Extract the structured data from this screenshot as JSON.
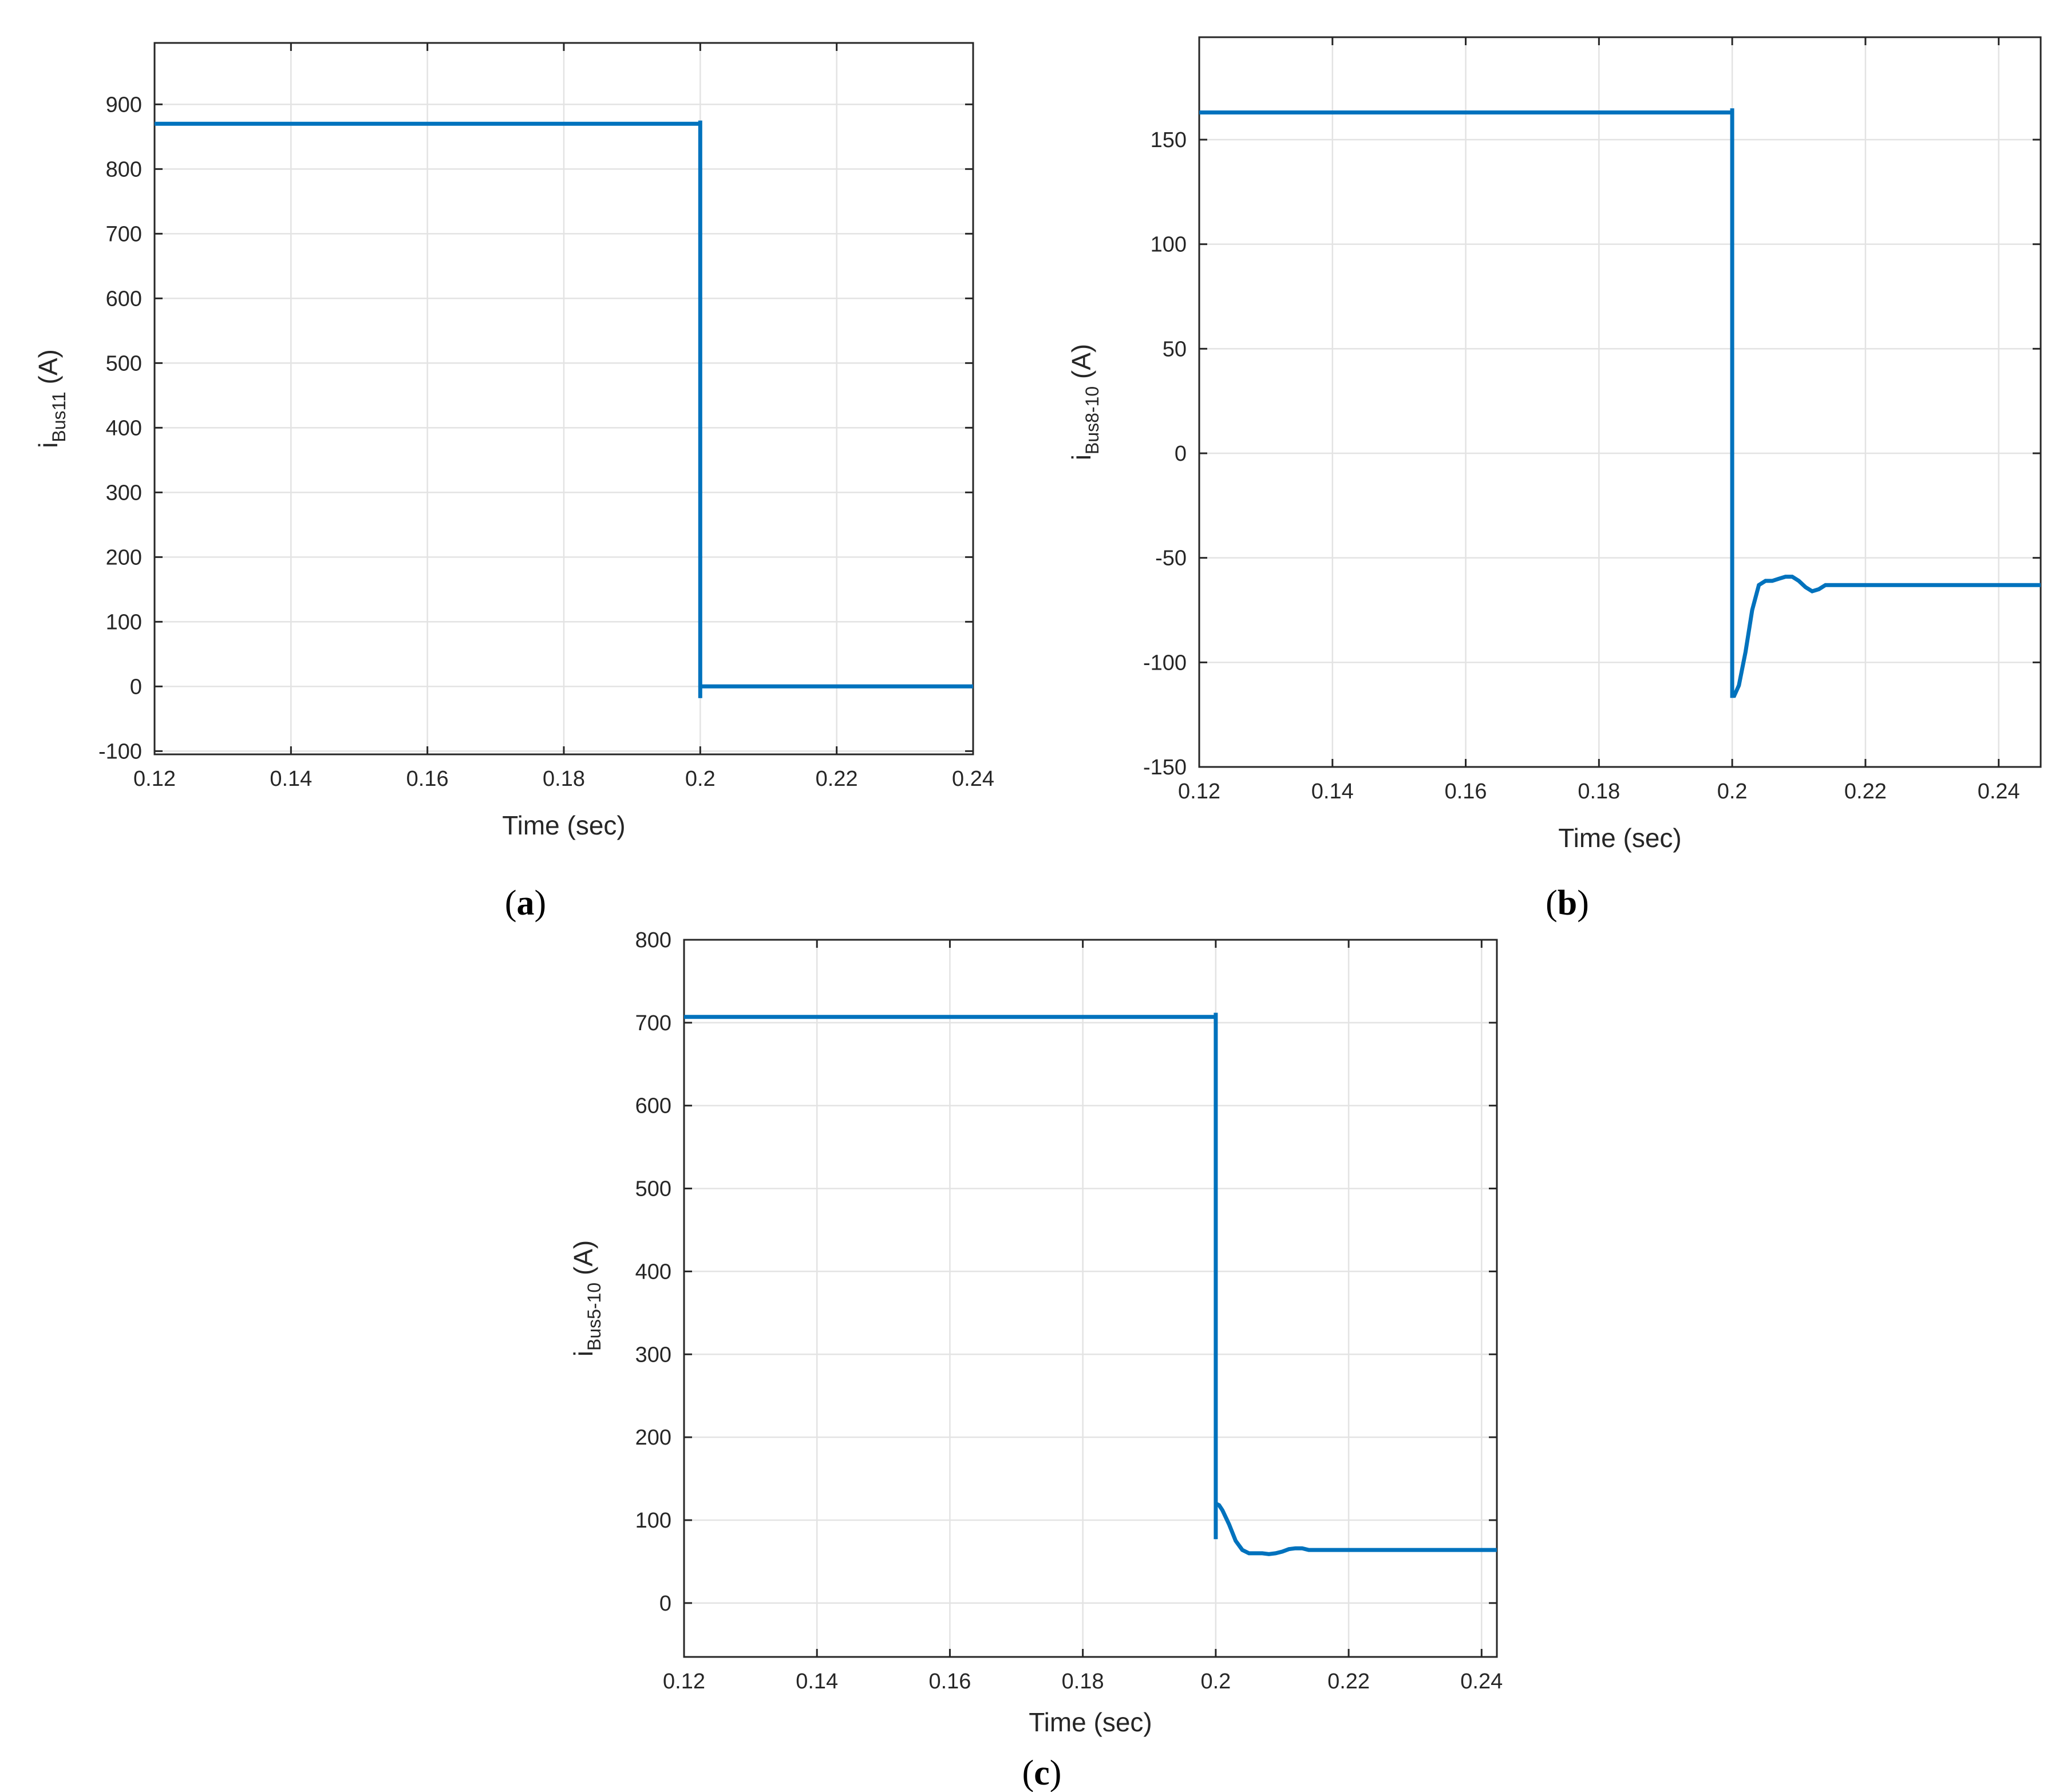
{
  "line_color": "#0072bd",
  "grid_color": "#e3e3e3",
  "chart_data": [
    {
      "id": "a",
      "type": "line",
      "subfigure_label": "a",
      "title": "",
      "xlabel": "Time (sec)",
      "ylabel_main": "i",
      "ylabel_sub": "Bus11",
      "ylabel_unit": " (A)",
      "xlim": [
        0.12,
        0.24
      ],
      "ylim": [
        -105,
        995
      ],
      "xticks": [
        0.12,
        0.14,
        0.16,
        0.18,
        0.2,
        0.22,
        0.24
      ],
      "xtick_labels": [
        "0.12",
        "0.14",
        "0.16",
        "0.18",
        "0.2",
        "0.22",
        "0.24"
      ],
      "yticks": [
        -100,
        0,
        100,
        200,
        300,
        400,
        500,
        600,
        700,
        800,
        900
      ],
      "ytick_labels": [
        "-100",
        "0",
        "100",
        "200",
        "300",
        "400",
        "500",
        "600",
        "700",
        "800",
        "900"
      ],
      "grid": true,
      "series": [
        {
          "x": [
            0.12,
            0.2,
            0.2,
            0.2,
            0.2,
            0.24
          ],
          "y": [
            870,
            870,
            875,
            -18,
            0,
            0
          ]
        }
      ]
    },
    {
      "id": "b",
      "type": "line",
      "subfigure_label": "b",
      "title": "",
      "xlabel": "Time (sec)",
      "ylabel_main": "i",
      "ylabel_sub": "Bus8-10",
      "ylabel_unit": " (A)",
      "xlim": [
        0.12,
        0.2463
      ],
      "ylim": [
        -150,
        199
      ],
      "xticks": [
        0.12,
        0.14,
        0.16,
        0.18,
        0.2,
        0.22,
        0.24
      ],
      "xtick_labels": [
        "0.12",
        "0.14",
        "0.16",
        "0.18",
        "0.2",
        "0.22",
        "0.24"
      ],
      "yticks": [
        -150,
        -100,
        -50,
        0,
        50,
        100,
        150
      ],
      "ytick_labels": [
        "-150",
        "-100",
        "-50",
        "0",
        "50",
        "100",
        "150"
      ],
      "grid": true,
      "series": [
        {
          "x": [
            0.12,
            0.2,
            0.2,
            0.2,
            0.2,
            0.2003,
            0.201,
            0.202,
            0.203,
            0.204,
            0.205,
            0.206,
            0.207,
            0.208,
            0.209,
            0.21,
            0.211,
            0.212,
            0.213,
            0.214,
            0.216,
            0.22,
            0.2463
          ],
          "y": [
            163,
            163,
            165,
            -117,
            -116,
            -116,
            -111,
            -95,
            -75,
            -63,
            -61,
            -61,
            -60,
            -59,
            -59,
            -61,
            -64,
            -66,
            -65,
            -63,
            -63,
            -63,
            -63
          ]
        }
      ]
    },
    {
      "id": "c",
      "type": "line",
      "subfigure_label": "c",
      "title": "",
      "xlabel": "Time (sec)",
      "ylabel_main": "i",
      "ylabel_sub": "Bus5-10",
      "ylabel_unit": " (A)",
      "xlim": [
        0.12,
        0.2423
      ],
      "ylim": [
        -65,
        800
      ],
      "xticks": [
        0.12,
        0.14,
        0.16,
        0.18,
        0.2,
        0.22,
        0.24
      ],
      "xtick_labels": [
        "0.12",
        "0.14",
        "0.16",
        "0.18",
        "0.2",
        "0.22",
        "0.24"
      ],
      "yticks": [
        0,
        100,
        200,
        300,
        400,
        500,
        600,
        700,
        800
      ],
      "ytick_labels": [
        "0",
        "100",
        "200",
        "300",
        "400",
        "500",
        "600",
        "700",
        "800"
      ],
      "grid": true,
      "series": [
        {
          "x": [
            0.12,
            0.2,
            0.2,
            0.2,
            0.2,
            0.2005,
            0.201,
            0.202,
            0.203,
            0.204,
            0.205,
            0.206,
            0.207,
            0.208,
            0.209,
            0.21,
            0.211,
            0.212,
            0.213,
            0.214,
            0.216,
            0.22,
            0.2423
          ],
          "y": [
            707,
            707,
            712,
            77,
            120,
            118,
            112,
            95,
            75,
            64,
            60,
            60,
            60,
            59,
            60,
            62,
            65,
            66,
            66,
            64,
            64,
            64,
            64
          ]
        }
      ]
    }
  ]
}
